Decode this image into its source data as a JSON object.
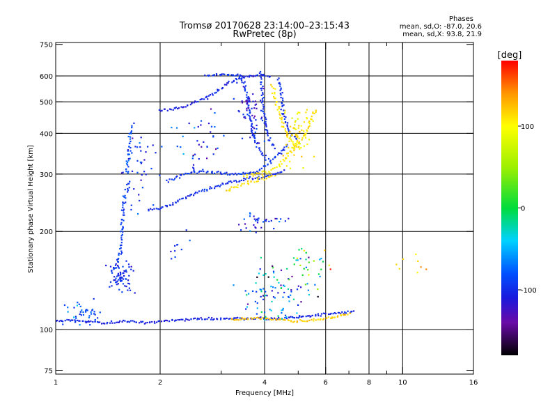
{
  "chart_data": {
    "type": "scatter",
    "title": "Tromsø 20170628 23:14:00–23:15:43",
    "subtitle": "RwPretec (8p)",
    "stats": {
      "heading": "Phases",
      "line_o": "mean, sd,O: -87.0, 20.6",
      "line_x": "mean, sd,X:  93.8, 21.9"
    },
    "xlabel": "Frequency [MHz]",
    "ylabel": "Stationary phase Virtual Height [km]",
    "x_scale": "log",
    "y_scale": "log",
    "xlim": [
      1,
      16
    ],
    "ylim": [
      73,
      760
    ],
    "x_ticks": [
      {
        "value": 1,
        "label": "1",
        "major": true
      },
      {
        "value": 2,
        "label": "2",
        "major": true
      },
      {
        "value": 3,
        "label": "",
        "major": false
      },
      {
        "value": 4,
        "label": "4",
        "major": true
      },
      {
        "value": 5,
        "label": "",
        "major": false
      },
      {
        "value": 6,
        "label": "6",
        "major": true
      },
      {
        "value": 7,
        "label": "",
        "major": false
      },
      {
        "value": 8,
        "label": "8",
        "major": true
      },
      {
        "value": 9,
        "label": "",
        "major": false
      },
      {
        "value": 10,
        "label": "10",
        "major": true
      },
      {
        "value": 16,
        "label": "16",
        "major": true
      }
    ],
    "y_ticks": [
      {
        "value": 75,
        "label": "75",
        "grid": false
      },
      {
        "value": 100,
        "label": "100",
        "grid": true
      },
      {
        "value": 200,
        "label": "200",
        "grid": true
      },
      {
        "value": 300,
        "label": "300",
        "grid": true
      },
      {
        "value": 400,
        "label": "400",
        "grid": true
      },
      {
        "value": 500,
        "label": "500",
        "grid": true
      },
      {
        "value": 600,
        "label": "600",
        "grid": true
      },
      {
        "value": 750,
        "label": "750",
        "grid": false
      }
    ],
    "grid": true,
    "colorbar": {
      "label": "[deg]",
      "range": [
        -180,
        180
      ],
      "ticks": [
        {
          "value": 100,
          "label": "100"
        },
        {
          "value": 0,
          "label": "0"
        },
        {
          "value": -100,
          "label": "-100"
        }
      ],
      "stops": [
        {
          "value": -180,
          "color": "#000000"
        },
        {
          "value": -140,
          "color": "#6a0aa8"
        },
        {
          "value": -110,
          "color": "#1a1adc"
        },
        {
          "value": -80,
          "color": "#0050ff"
        },
        {
          "value": -40,
          "color": "#00d2ff"
        },
        {
          "value": 0,
          "color": "#00dc3c"
        },
        {
          "value": 50,
          "color": "#9ef000"
        },
        {
          "value": 100,
          "color": "#ffff00"
        },
        {
          "value": 140,
          "color": "#ff9600"
        },
        {
          "value": 180,
          "color": "#ff0000"
        }
      ]
    },
    "series": [
      {
        "kind": "trace",
        "phase": -105,
        "jitter": 0.012,
        "points": [
          [
            1.0,
            106
          ],
          [
            1.1,
            107
          ],
          [
            1.2,
            106
          ],
          [
            1.4,
            105
          ],
          [
            1.6,
            106
          ],
          [
            1.8,
            105
          ],
          [
            2.0,
            106
          ],
          [
            2.3,
            107
          ],
          [
            2.6,
            108
          ],
          [
            3.0,
            108
          ],
          [
            3.4,
            108
          ],
          [
            3.8,
            108
          ],
          [
            4.3,
            108
          ],
          [
            4.8,
            109
          ],
          [
            5.3,
            110
          ],
          [
            5.8,
            111
          ],
          [
            6.3,
            112
          ],
          [
            6.9,
            113
          ],
          [
            7.3,
            114
          ]
        ]
      },
      {
        "kind": "trace",
        "phase": 120,
        "jitter": 0.012,
        "points": [
          [
            3.2,
            107
          ],
          [
            3.6,
            108
          ],
          [
            4.0,
            108
          ],
          [
            4.5,
            107
          ],
          [
            5.0,
            106
          ],
          [
            5.5,
            107
          ],
          [
            6.0,
            108
          ],
          [
            6.6,
            110
          ],
          [
            7.1,
            112
          ]
        ]
      },
      {
        "kind": "trace",
        "phase": -90,
        "jitter": 0.02,
        "points": [
          [
            1.45,
            150
          ],
          [
            1.5,
            160
          ],
          [
            1.53,
            175
          ],
          [
            1.55,
            200
          ],
          [
            1.57,
            235
          ],
          [
            1.6,
            265
          ],
          [
            1.62,
            290
          ]
        ]
      },
      {
        "kind": "trace",
        "phase": -80,
        "jitter": 0.02,
        "points": [
          [
            1.6,
            300
          ],
          [
            1.62,
            340
          ],
          [
            1.64,
            380
          ],
          [
            1.65,
            425
          ]
        ]
      },
      {
        "kind": "trace",
        "phase": -100,
        "jitter": 0.015,
        "points": [
          [
            1.85,
            232
          ],
          [
            2.0,
            236
          ],
          [
            2.2,
            245
          ],
          [
            2.4,
            256
          ],
          [
            2.7,
            268
          ],
          [
            3.0,
            278
          ],
          [
            3.3,
            285
          ],
          [
            3.6,
            290
          ],
          [
            4.0,
            294
          ],
          [
            4.3,
            300
          ],
          [
            4.6,
            310
          ]
        ]
      },
      {
        "kind": "trace",
        "phase": -95,
        "jitter": 0.015,
        "points": [
          [
            2.1,
            285
          ],
          [
            2.3,
            298
          ],
          [
            2.6,
            305
          ],
          [
            2.9,
            305
          ],
          [
            3.2,
            300
          ],
          [
            3.5,
            300
          ],
          [
            3.8,
            305
          ],
          [
            4.1,
            322
          ],
          [
            4.4,
            345
          ],
          [
            4.7,
            372
          ]
        ]
      },
      {
        "kind": "trace",
        "phase": -105,
        "jitter": 0.012,
        "points": [
          [
            2.0,
            468
          ],
          [
            2.3,
            480
          ],
          [
            2.6,
            505
          ],
          [
            2.9,
            535
          ],
          [
            3.1,
            565
          ],
          [
            3.3,
            585
          ],
          [
            3.6,
            598
          ],
          [
            3.9,
            603
          ],
          [
            4.2,
            598
          ]
        ]
      },
      {
        "kind": "trace",
        "phase": -100,
        "jitter": 0.012,
        "points": [
          [
            2.7,
            600
          ],
          [
            2.9,
            605
          ],
          [
            3.1,
            606
          ],
          [
            3.3,
            604
          ],
          [
            3.5,
            600
          ]
        ]
      },
      {
        "kind": "trace",
        "phase": -95,
        "jitter": 0.015,
        "points": [
          [
            3.4,
            600
          ],
          [
            3.5,
            560
          ],
          [
            3.55,
            520
          ],
          [
            3.6,
            480
          ],
          [
            3.65,
            440
          ],
          [
            3.7,
            400
          ],
          [
            3.8,
            370
          ],
          [
            3.95,
            345
          ],
          [
            4.1,
            330
          ]
        ]
      },
      {
        "kind": "trace",
        "phase": -100,
        "jitter": 0.015,
        "points": [
          [
            3.9,
            620
          ],
          [
            3.92,
            560
          ],
          [
            3.95,
            500
          ],
          [
            4.0,
            450
          ],
          [
            4.05,
            410
          ],
          [
            4.15,
            380
          ],
          [
            4.3,
            360
          ]
        ]
      },
      {
        "kind": "trace",
        "phase": -100,
        "jitter": 0.015,
        "points": [
          [
            4.4,
            590
          ],
          [
            4.45,
            540
          ],
          [
            4.5,
            490
          ],
          [
            4.55,
            450
          ],
          [
            4.65,
            420
          ],
          [
            4.8,
            395
          ],
          [
            5.0,
            382
          ]
        ]
      },
      {
        "kind": "trace",
        "phase": 110,
        "jitter": 0.02,
        "points": [
          [
            3.5,
            295
          ],
          [
            3.8,
            300
          ],
          [
            4.1,
            305
          ],
          [
            4.4,
            320
          ],
          [
            4.7,
            345
          ],
          [
            5.0,
            375
          ],
          [
            5.3,
            410
          ],
          [
            5.5,
            450
          ],
          [
            5.6,
            480
          ]
        ]
      },
      {
        "kind": "trace",
        "phase": 110,
        "jitter": 0.02,
        "points": [
          [
            4.2,
            560
          ],
          [
            4.3,
            520
          ],
          [
            4.4,
            470
          ],
          [
            4.5,
            430
          ],
          [
            4.65,
            395
          ],
          [
            4.85,
            372
          ],
          [
            5.1,
            360
          ]
        ]
      },
      {
        "kind": "trace",
        "phase": 115,
        "jitter": 0.02,
        "points": [
          [
            3.1,
            268
          ],
          [
            3.4,
            275
          ],
          [
            3.7,
            285
          ],
          [
            4.0,
            292
          ],
          [
            4.3,
            298
          ]
        ]
      }
    ],
    "clouds": [
      {
        "cx": 1.55,
        "cy": 145,
        "sx": 0.03,
        "sy": 0.05,
        "n": 70,
        "phase": -100,
        "spread": 20
      },
      {
        "cx": 1.75,
        "cy": 300,
        "sx": 0.05,
        "sy": 0.15,
        "n": 40,
        "phase": -100,
        "spread": 30
      },
      {
        "cx": 1.2,
        "cy": 112,
        "sx": 0.06,
        "sy": 0.03,
        "n": 40,
        "phase": -80,
        "spread": 30
      },
      {
        "cx": 4.3,
        "cy": 130,
        "sx": 0.09,
        "sy": 0.08,
        "n": 90,
        "phase": -70,
        "spread": 90
      },
      {
        "cx": 5.4,
        "cy": 155,
        "sx": 0.06,
        "sy": 0.09,
        "n": 35,
        "phase": 0,
        "spread": 150
      },
      {
        "cx": 3.9,
        "cy": 215,
        "sx": 0.09,
        "sy": 0.04,
        "n": 35,
        "phase": -100,
        "spread": 40
      },
      {
        "cx": 2.6,
        "cy": 390,
        "sx": 0.08,
        "sy": 0.1,
        "n": 40,
        "phase": -100,
        "spread": 40
      },
      {
        "cx": 3.7,
        "cy": 460,
        "sx": 0.05,
        "sy": 0.1,
        "n": 60,
        "phase": -110,
        "spread": 30
      },
      {
        "cx": 5.0,
        "cy": 400,
        "sx": 0.04,
        "sy": 0.09,
        "n": 70,
        "phase": 105,
        "spread": 25
      },
      {
        "cx": 11.0,
        "cy": 160,
        "sx": 0.05,
        "sy": 0.04,
        "n": 8,
        "phase": 130,
        "spread": 40
      },
      {
        "cx": 2.3,
        "cy": 180,
        "sx": 0.05,
        "sy": 0.05,
        "n": 10,
        "phase": -100,
        "spread": 30
      }
    ]
  }
}
